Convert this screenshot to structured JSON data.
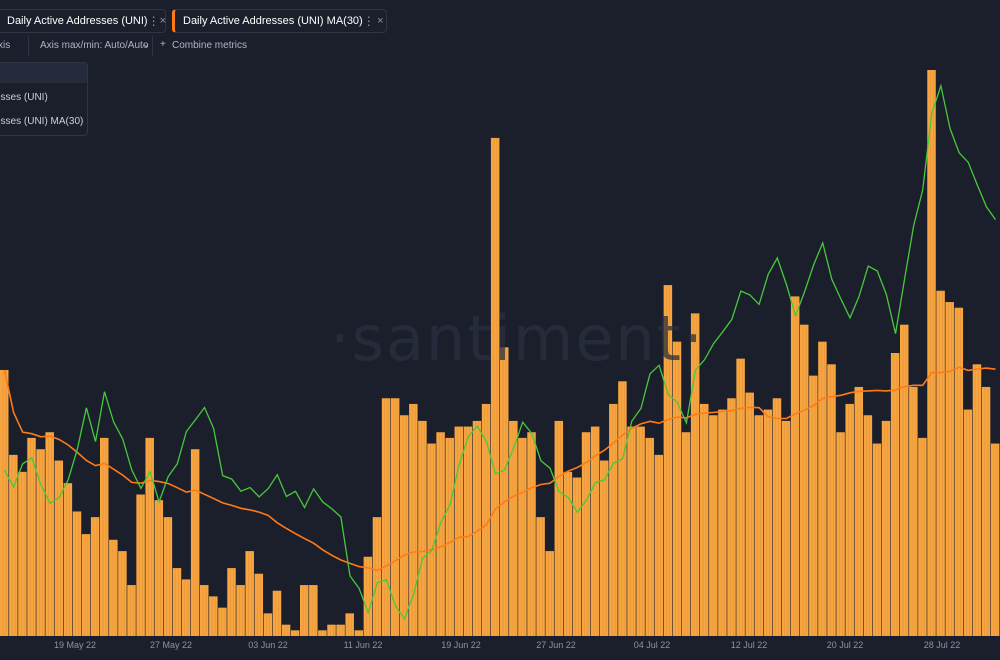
{
  "tabs": [
    {
      "label": "Daily Active Addresses (UNI)",
      "menu": "⋮",
      "close": "×"
    },
    {
      "label": "Daily Active Addresses (UNI) MA(30)",
      "menu": "⋮",
      "close": "×"
    }
  ],
  "toolbar": {
    "axis_label": "xis",
    "axis_maxmin_label": "Axis max/min: Auto/Auto",
    "axis_maxmin_chevron": "⌄",
    "combine_plus": "+",
    "combine_label": "Combine metrics"
  },
  "legend": {
    "items": [
      {
        "label": "esses (UNI)",
        "color": "#f7a541"
      },
      {
        "label": "esses (UNI) MA(30)",
        "color": "#ff7a17"
      }
    ]
  },
  "watermark": "·santiment·",
  "colors": {
    "background": "#1b1f2c",
    "bars": "#f7a541",
    "price_line": "#46c93a",
    "ma_line": "#ff7a17"
  },
  "chart_data": {
    "type": "bar",
    "x_tick_labels": [
      "19 May 22",
      "27 May 22",
      "03 Jun 22",
      "11 Jun 22",
      "19 Jun 22",
      "27 Jun 22",
      "04 Jul 22",
      "12 Jul 22",
      "20 Jul 22",
      "28 Jul 22"
    ],
    "bar_series_name": "Daily Active Addresses (UNI)",
    "bar_values": [
      0.47,
      0.32,
      0.29,
      0.35,
      0.33,
      0.36,
      0.31,
      0.27,
      0.22,
      0.18,
      0.21,
      0.35,
      0.17,
      0.15,
      0.09,
      0.25,
      0.35,
      0.24,
      0.21,
      0.12,
      0.1,
      0.33,
      0.09,
      0.07,
      0.05,
      0.12,
      0.09,
      0.15,
      0.11,
      0.04,
      0.08,
      0.02,
      0.01,
      0.09,
      0.09,
      0.01,
      0.02,
      0.02,
      0.04,
      0.01,
      0.14,
      0.21,
      0.42,
      0.42,
      0.39,
      0.41,
      0.38,
      0.34,
      0.36,
      0.35,
      0.37,
      0.37,
      0.38,
      0.41,
      0.88,
      0.51,
      0.38,
      0.35,
      0.36,
      0.21,
      0.15,
      0.38,
      0.29,
      0.28,
      0.36,
      0.37,
      0.31,
      0.41,
      0.45,
      0.37,
      0.37,
      0.35,
      0.32,
      0.62,
      0.52,
      0.36,
      0.57,
      0.41,
      0.39,
      0.4,
      0.42,
      0.49,
      0.43,
      0.39,
      0.4,
      0.42,
      0.38,
      0.6,
      0.55,
      0.46,
      0.52,
      0.48,
      0.36,
      0.41,
      0.44,
      0.39,
      0.34,
      0.38,
      0.5,
      0.55,
      0.44,
      0.35,
      1.0,
      0.61,
      0.59,
      0.58,
      0.4,
      0.48,
      0.44,
      0.34
    ]
  }
}
